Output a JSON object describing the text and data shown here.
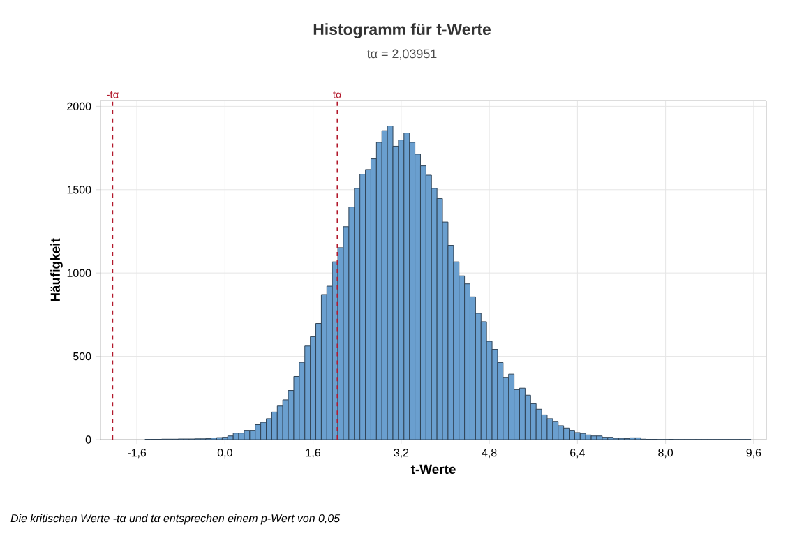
{
  "chart_data": {
    "type": "histogram",
    "title": "Histogramm für t-Werte",
    "subtitle": "tα = 2,03951",
    "xlabel": "t-Werte",
    "ylabel": "Häufigkeit",
    "annotations": [
      "Die kritischen Werte -tα und tα entsprechen einem p-Wert von 0,05"
    ],
    "color": "#6a9fcf",
    "bins": [
      -1.45,
      -1.35,
      -1.25,
      -1.15,
      -1.05,
      -0.95,
      -0.85,
      -0.75,
      -0.65,
      -0.55,
      -0.45,
      -0.35,
      -0.25,
      -0.15,
      -0.05,
      0.05,
      0.15,
      0.25,
      0.35,
      0.45,
      0.55,
      0.65,
      0.75,
      0.85,
      0.95,
      1.05,
      1.15,
      1.25,
      1.35,
      1.45,
      1.55,
      1.65,
      1.75,
      1.85,
      1.95,
      2.05,
      2.15,
      2.25,
      2.35,
      2.45,
      2.55,
      2.65,
      2.75,
      2.85,
      2.95,
      3.05,
      3.15,
      3.25,
      3.35,
      3.45,
      3.55,
      3.65,
      3.75,
      3.85,
      3.95,
      4.05,
      4.15,
      4.25,
      4.35,
      4.45,
      4.55,
      4.65,
      4.75,
      4.85,
      4.95,
      5.05,
      5.15,
      5.25,
      5.35,
      5.45,
      5.55,
      5.65,
      5.75,
      5.85,
      5.95,
      6.05,
      6.15,
      6.25,
      6.35,
      6.45,
      6.55,
      6.65,
      6.75,
      6.85,
      6.95,
      7.05,
      7.15,
      7.25,
      7.35,
      7.45,
      7.55,
      7.65,
      7.75,
      7.85,
      7.95,
      8.05,
      8.15,
      8.25,
      8.35,
      8.45,
      8.55,
      8.65,
      8.75,
      8.85,
      8.95,
      9.05,
      9.15,
      9.25,
      9.35,
      9.45,
      9.55
    ],
    "values": [
      2,
      2,
      2,
      3,
      3,
      3,
      4,
      4,
      4,
      5,
      5,
      6,
      10,
      12,
      14,
      22,
      39,
      39,
      56,
      56,
      90,
      104,
      126,
      166,
      202,
      239,
      295,
      379,
      464,
      562,
      618,
      697,
      871,
      921,
      1067,
      1152,
      1278,
      1396,
      1508,
      1593,
      1621,
      1685,
      1784,
      1854,
      1882,
      1761,
      1798,
      1840,
      1784,
      1713,
      1643,
      1587,
      1508,
      1447,
      1306,
      1166,
      1067,
      983,
      935,
      857,
      758,
      708,
      590,
      542,
      463,
      374,
      393,
      300,
      309,
      267,
      216,
      183,
      149,
      126,
      110,
      84,
      70,
      56,
      42,
      37,
      28,
      22,
      22,
      14,
      14,
      8,
      8,
      6,
      11,
      11,
      3,
      2,
      2,
      1,
      1,
      2,
      1,
      1,
      1,
      1,
      1,
      1,
      1,
      1,
      1,
      1,
      1,
      1,
      1,
      1
    ],
    "xlim": [
      -2.26,
      9.83
    ],
    "ylim": [
      0,
      2035
    ],
    "xticks": [
      {
        "value": -1.6,
        "label": "-1,6"
      },
      {
        "value": 0.0,
        "label": "0,0"
      },
      {
        "value": 1.6,
        "label": "1,6"
      },
      {
        "value": 3.2,
        "label": "3,2"
      },
      {
        "value": 4.8,
        "label": "4,8"
      },
      {
        "value": 6.4,
        "label": "6,4"
      },
      {
        "value": 8.0,
        "label": "8,0"
      },
      {
        "value": 9.6,
        "label": "9,6"
      }
    ],
    "yticks": [
      0,
      500,
      1000,
      1500,
      2000
    ],
    "grid": true,
    "ref_lines": [
      {
        "axis": "x",
        "value": -2.03951,
        "label": "-tα",
        "color": "#b2182b",
        "line_style": "dashed"
      },
      {
        "axis": "x",
        "value": 2.03951,
        "label": "tα",
        "color": "#b2182b",
        "line_style": "dashed"
      }
    ]
  }
}
